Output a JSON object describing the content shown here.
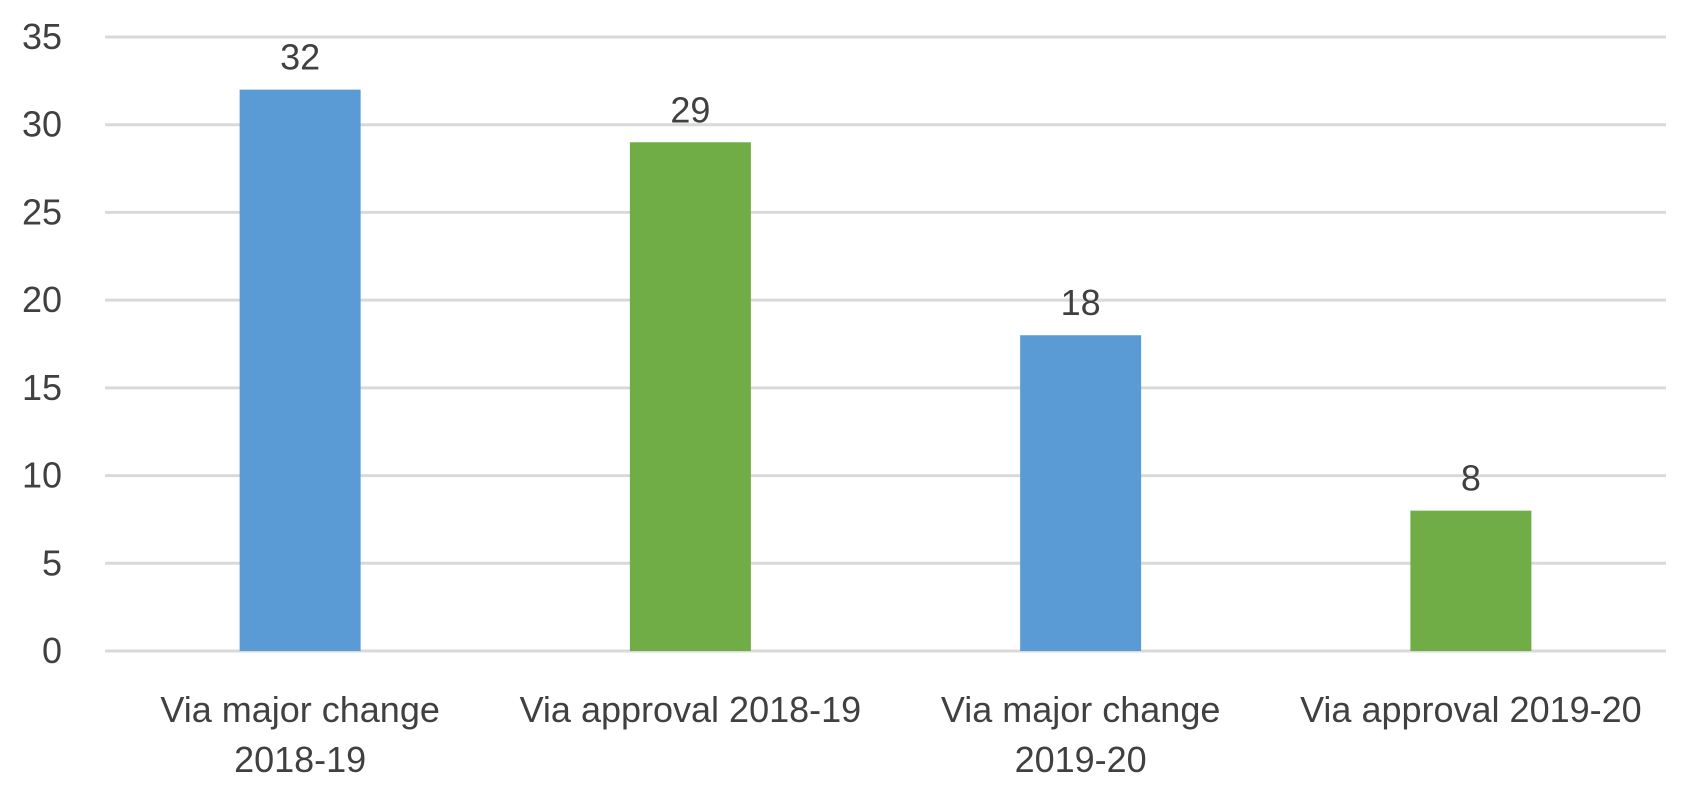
{
  "chart_data": {
    "type": "bar",
    "categories": [
      [
        "Via major change",
        "2018-19"
      ],
      [
        "Via approval 2018-19"
      ],
      [
        "Via major change",
        "2019-20"
      ],
      [
        "Via approval 2019-20"
      ]
    ],
    "values": [
      32,
      29,
      18,
      8
    ],
    "data_labels": [
      "32",
      "29",
      "18",
      "8"
    ],
    "colors": [
      "#5b9bd5",
      "#70ad47",
      "#5b9bd5",
      "#70ad47"
    ],
    "ylim": [
      0,
      35
    ],
    "yticks": [
      0,
      5,
      10,
      15,
      20,
      25,
      30,
      35
    ],
    "ytick_labels": [
      "0",
      "5",
      "10",
      "15",
      "20",
      "25",
      "30",
      "35"
    ],
    "title": "",
    "xlabel": "",
    "ylabel": "",
    "grid": true,
    "legend": "none",
    "gridline_color": "#d9d9d9",
    "text_color": "#404040"
  }
}
